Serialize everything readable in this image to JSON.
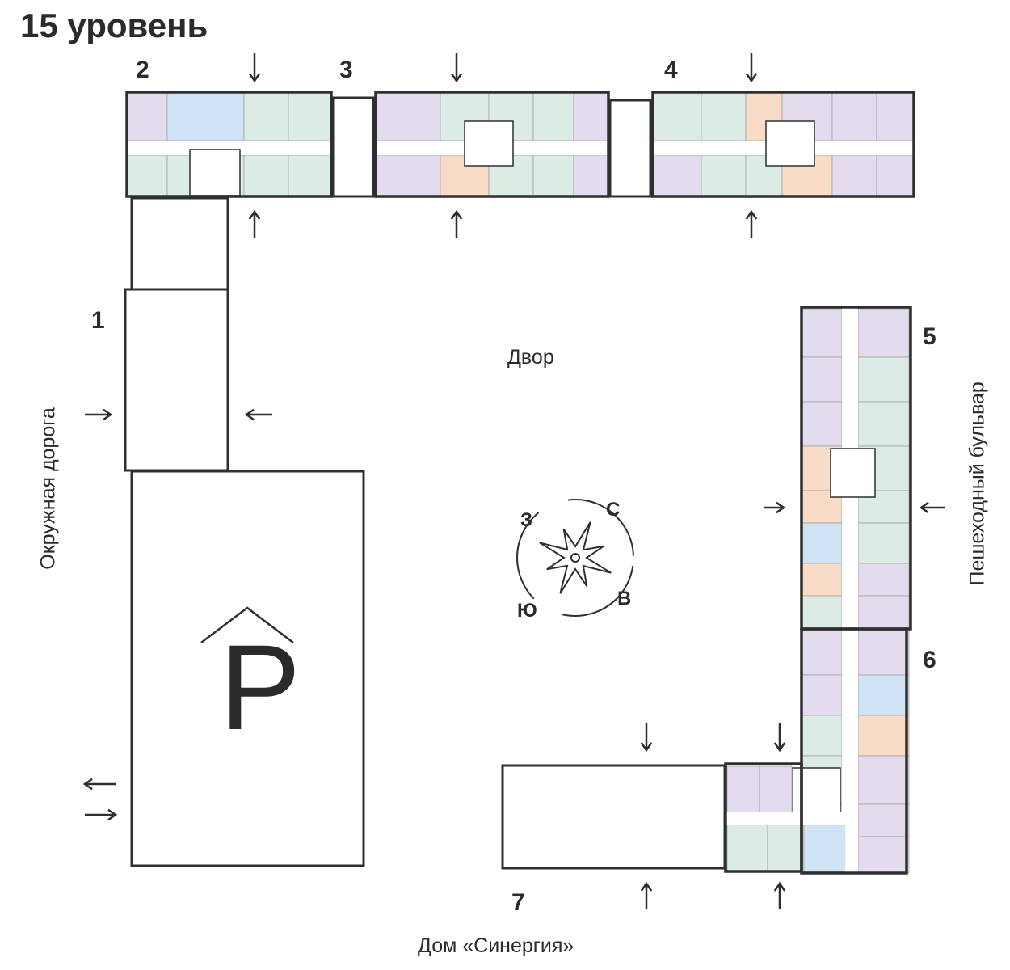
{
  "title": "15 уровень",
  "sections": [
    "1",
    "2",
    "3",
    "4",
    "5",
    "6",
    "7"
  ],
  "labels": {
    "courtyard": "Двор",
    "ring_road": "Окружная дорога",
    "boulevard": "Пешеходный бульвар",
    "house": "Дом «Синергия»",
    "parking": "P"
  },
  "compass": {
    "west": "З",
    "north": "С",
    "south": "Ю",
    "east": "В"
  },
  "colors": {
    "wall": "#2f2f2f",
    "studio": "#cfe3f5",
    "one_room": "#f8dcc8",
    "two_room": "#dcebe3",
    "three_room": "#e3dcef",
    "corridor": "#ffffff"
  }
}
